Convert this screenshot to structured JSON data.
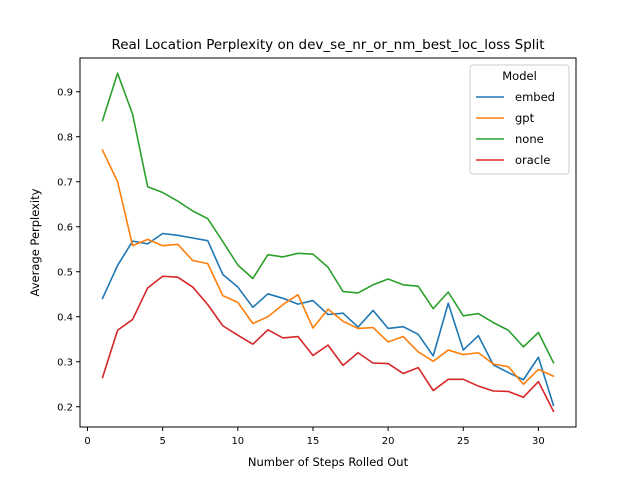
{
  "chart_data": {
    "type": "line",
    "title": "Real Location Perplexity on dev_se_nr_or_nm_best_loc_loss Split",
    "xlabel": "Number of Steps Rolled Out",
    "ylabel": "Average Perplexity",
    "xlim": [
      -0.5,
      32.5
    ],
    "ylim": [
      0.155,
      0.975
    ],
    "xticks": [
      0,
      5,
      10,
      15,
      20,
      25,
      30
    ],
    "yticks": [
      0.2,
      0.3,
      0.4,
      0.5,
      0.6,
      0.7,
      0.8,
      0.9
    ],
    "legend": {
      "title": "Model",
      "placement": "top-right"
    },
    "grid": false,
    "x": [
      1,
      2,
      3,
      4,
      5,
      6,
      7,
      8,
      9,
      10,
      11,
      12,
      13,
      14,
      15,
      16,
      17,
      18,
      19,
      20,
      21,
      22,
      23,
      24,
      25,
      26,
      27,
      28,
      29,
      30,
      31
    ],
    "series": [
      {
        "name": "embed",
        "color": "#1f77b4",
        "values": [
          0.441,
          0.514,
          0.568,
          0.562,
          0.585,
          0.581,
          0.575,
          0.569,
          0.494,
          0.466,
          0.421,
          0.451,
          0.441,
          0.428,
          0.436,
          0.405,
          0.408,
          0.377,
          0.414,
          0.374,
          0.378,
          0.361,
          0.313,
          0.43,
          0.326,
          0.358,
          0.293,
          0.276,
          0.26,
          0.31,
          0.203
        ]
      },
      {
        "name": "gpt",
        "color": "#ff7f0e",
        "values": [
          0.77,
          0.7,
          0.558,
          0.572,
          0.558,
          0.561,
          0.525,
          0.518,
          0.447,
          0.432,
          0.385,
          0.4,
          0.427,
          0.449,
          0.375,
          0.417,
          0.39,
          0.374,
          0.376,
          0.344,
          0.356,
          0.322,
          0.301,
          0.326,
          0.316,
          0.32,
          0.295,
          0.289,
          0.25,
          0.283,
          0.268
        ]
      },
      {
        "name": "none",
        "color": "#2ca02c",
        "values": [
          0.836,
          0.941,
          0.85,
          0.689,
          0.676,
          0.657,
          0.635,
          0.618,
          0.567,
          0.515,
          0.485,
          0.538,
          0.533,
          0.541,
          0.539,
          0.51,
          0.456,
          0.453,
          0.471,
          0.484,
          0.471,
          0.468,
          0.418,
          0.455,
          0.402,
          0.407,
          0.387,
          0.37,
          0.333,
          0.365,
          0.298
        ]
      },
      {
        "name": "oracle",
        "color": "#d62728",
        "values": [
          0.265,
          0.37,
          0.394,
          0.464,
          0.49,
          0.488,
          0.466,
          0.427,
          0.38,
          0.359,
          0.339,
          0.371,
          0.353,
          0.356,
          0.314,
          0.337,
          0.292,
          0.32,
          0.297,
          0.296,
          0.274,
          0.287,
          0.236,
          0.261,
          0.261,
          0.246,
          0.235,
          0.234,
          0.221,
          0.256,
          0.19
        ]
      }
    ]
  }
}
